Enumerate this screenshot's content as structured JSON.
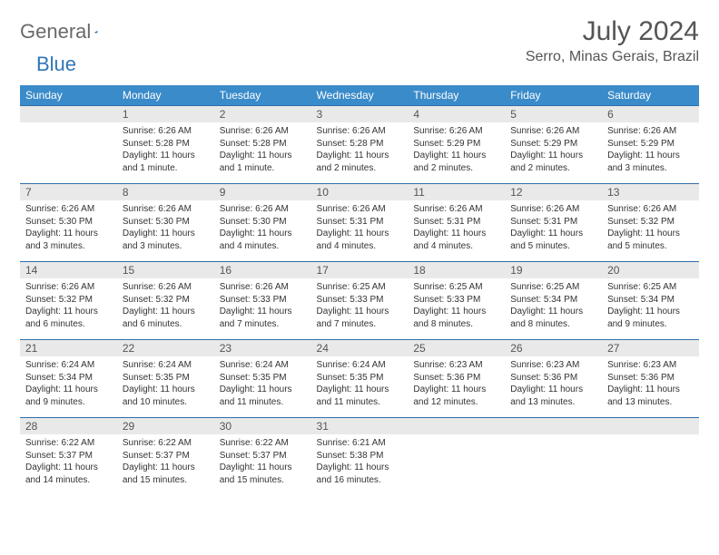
{
  "brand": {
    "left": "General",
    "right": "Blue"
  },
  "title": "July 2024",
  "location": "Serro, Minas Gerais, Brazil",
  "colors": {
    "header_bg": "#3a8bc9",
    "row_border": "#2f6fa8",
    "daynum_bg": "#e9e9e9",
    "brand_gray": "#6a6a6a",
    "brand_blue": "#2f77b8"
  },
  "weekdays": [
    "Sunday",
    "Monday",
    "Tuesday",
    "Wednesday",
    "Thursday",
    "Friday",
    "Saturday"
  ],
  "grid": [
    [
      {
        "n": "",
        "lines": []
      },
      {
        "n": "1",
        "lines": [
          "Sunrise: 6:26 AM",
          "Sunset: 5:28 PM",
          "Daylight: 11 hours",
          "and 1 minute."
        ]
      },
      {
        "n": "2",
        "lines": [
          "Sunrise: 6:26 AM",
          "Sunset: 5:28 PM",
          "Daylight: 11 hours",
          "and 1 minute."
        ]
      },
      {
        "n": "3",
        "lines": [
          "Sunrise: 6:26 AM",
          "Sunset: 5:28 PM",
          "Daylight: 11 hours",
          "and 2 minutes."
        ]
      },
      {
        "n": "4",
        "lines": [
          "Sunrise: 6:26 AM",
          "Sunset: 5:29 PM",
          "Daylight: 11 hours",
          "and 2 minutes."
        ]
      },
      {
        "n": "5",
        "lines": [
          "Sunrise: 6:26 AM",
          "Sunset: 5:29 PM",
          "Daylight: 11 hours",
          "and 2 minutes."
        ]
      },
      {
        "n": "6",
        "lines": [
          "Sunrise: 6:26 AM",
          "Sunset: 5:29 PM",
          "Daylight: 11 hours",
          "and 3 minutes."
        ]
      }
    ],
    [
      {
        "n": "7",
        "lines": [
          "Sunrise: 6:26 AM",
          "Sunset: 5:30 PM",
          "Daylight: 11 hours",
          "and 3 minutes."
        ]
      },
      {
        "n": "8",
        "lines": [
          "Sunrise: 6:26 AM",
          "Sunset: 5:30 PM",
          "Daylight: 11 hours",
          "and 3 minutes."
        ]
      },
      {
        "n": "9",
        "lines": [
          "Sunrise: 6:26 AM",
          "Sunset: 5:30 PM",
          "Daylight: 11 hours",
          "and 4 minutes."
        ]
      },
      {
        "n": "10",
        "lines": [
          "Sunrise: 6:26 AM",
          "Sunset: 5:31 PM",
          "Daylight: 11 hours",
          "and 4 minutes."
        ]
      },
      {
        "n": "11",
        "lines": [
          "Sunrise: 6:26 AM",
          "Sunset: 5:31 PM",
          "Daylight: 11 hours",
          "and 4 minutes."
        ]
      },
      {
        "n": "12",
        "lines": [
          "Sunrise: 6:26 AM",
          "Sunset: 5:31 PM",
          "Daylight: 11 hours",
          "and 5 minutes."
        ]
      },
      {
        "n": "13",
        "lines": [
          "Sunrise: 6:26 AM",
          "Sunset: 5:32 PM",
          "Daylight: 11 hours",
          "and 5 minutes."
        ]
      }
    ],
    [
      {
        "n": "14",
        "lines": [
          "Sunrise: 6:26 AM",
          "Sunset: 5:32 PM",
          "Daylight: 11 hours",
          "and 6 minutes."
        ]
      },
      {
        "n": "15",
        "lines": [
          "Sunrise: 6:26 AM",
          "Sunset: 5:32 PM",
          "Daylight: 11 hours",
          "and 6 minutes."
        ]
      },
      {
        "n": "16",
        "lines": [
          "Sunrise: 6:26 AM",
          "Sunset: 5:33 PM",
          "Daylight: 11 hours",
          "and 7 minutes."
        ]
      },
      {
        "n": "17",
        "lines": [
          "Sunrise: 6:25 AM",
          "Sunset: 5:33 PM",
          "Daylight: 11 hours",
          "and 7 minutes."
        ]
      },
      {
        "n": "18",
        "lines": [
          "Sunrise: 6:25 AM",
          "Sunset: 5:33 PM",
          "Daylight: 11 hours",
          "and 8 minutes."
        ]
      },
      {
        "n": "19",
        "lines": [
          "Sunrise: 6:25 AM",
          "Sunset: 5:34 PM",
          "Daylight: 11 hours",
          "and 8 minutes."
        ]
      },
      {
        "n": "20",
        "lines": [
          "Sunrise: 6:25 AM",
          "Sunset: 5:34 PM",
          "Daylight: 11 hours",
          "and 9 minutes."
        ]
      }
    ],
    [
      {
        "n": "21",
        "lines": [
          "Sunrise: 6:24 AM",
          "Sunset: 5:34 PM",
          "Daylight: 11 hours",
          "and 9 minutes."
        ]
      },
      {
        "n": "22",
        "lines": [
          "Sunrise: 6:24 AM",
          "Sunset: 5:35 PM",
          "Daylight: 11 hours",
          "and 10 minutes."
        ]
      },
      {
        "n": "23",
        "lines": [
          "Sunrise: 6:24 AM",
          "Sunset: 5:35 PM",
          "Daylight: 11 hours",
          "and 11 minutes."
        ]
      },
      {
        "n": "24",
        "lines": [
          "Sunrise: 6:24 AM",
          "Sunset: 5:35 PM",
          "Daylight: 11 hours",
          "and 11 minutes."
        ]
      },
      {
        "n": "25",
        "lines": [
          "Sunrise: 6:23 AM",
          "Sunset: 5:36 PM",
          "Daylight: 11 hours",
          "and 12 minutes."
        ]
      },
      {
        "n": "26",
        "lines": [
          "Sunrise: 6:23 AM",
          "Sunset: 5:36 PM",
          "Daylight: 11 hours",
          "and 13 minutes."
        ]
      },
      {
        "n": "27",
        "lines": [
          "Sunrise: 6:23 AM",
          "Sunset: 5:36 PM",
          "Daylight: 11 hours",
          "and 13 minutes."
        ]
      }
    ],
    [
      {
        "n": "28",
        "lines": [
          "Sunrise: 6:22 AM",
          "Sunset: 5:37 PM",
          "Daylight: 11 hours",
          "and 14 minutes."
        ]
      },
      {
        "n": "29",
        "lines": [
          "Sunrise: 6:22 AM",
          "Sunset: 5:37 PM",
          "Daylight: 11 hours",
          "and 15 minutes."
        ]
      },
      {
        "n": "30",
        "lines": [
          "Sunrise: 6:22 AM",
          "Sunset: 5:37 PM",
          "Daylight: 11 hours",
          "and 15 minutes."
        ]
      },
      {
        "n": "31",
        "lines": [
          "Sunrise: 6:21 AM",
          "Sunset: 5:38 PM",
          "Daylight: 11 hours",
          "and 16 minutes."
        ]
      },
      {
        "n": "",
        "lines": []
      },
      {
        "n": "",
        "lines": []
      },
      {
        "n": "",
        "lines": []
      }
    ]
  ]
}
